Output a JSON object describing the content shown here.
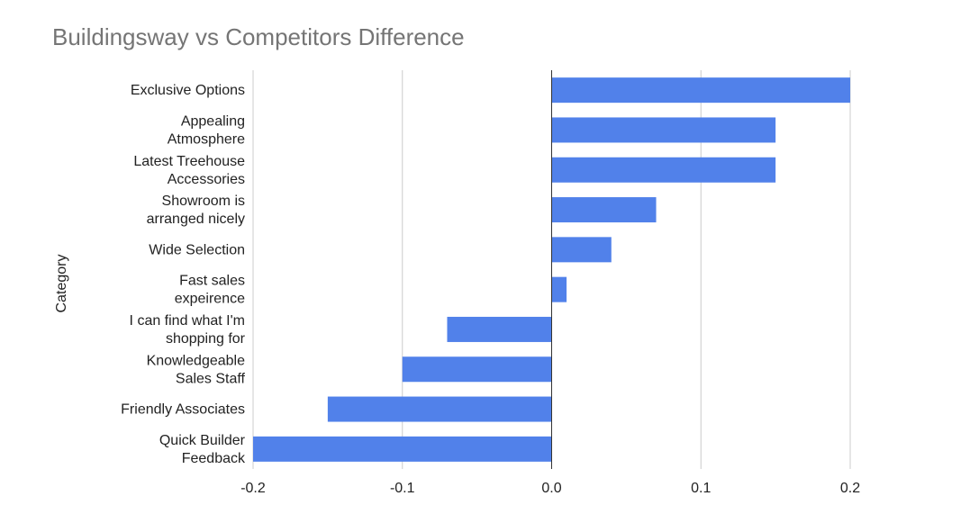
{
  "chart_data": {
    "type": "bar",
    "orientation": "horizontal",
    "title": "Buildingsway vs Competitors Difference",
    "ylabel": "Category",
    "xlabel": "",
    "xlim": [
      -0.2,
      0.2
    ],
    "x_ticks": [
      "-0.2",
      "-0.1",
      "0.0",
      "0.1",
      "0.2"
    ],
    "x_tick_values": [
      -0.2,
      -0.1,
      0,
      0.1,
      0.2
    ],
    "grid": true,
    "legend": "none",
    "bar_color": "#5181ea",
    "categories": [
      [
        "Exclusive Options"
      ],
      [
        "Appealing",
        "Atmosphere"
      ],
      [
        "Latest Treehouse",
        "Accessories"
      ],
      [
        "Showroom is",
        "arranged nicely"
      ],
      [
        "Wide Selection"
      ],
      [
        "Fast sales",
        "expeirence"
      ],
      [
        "I can find what I'm",
        "shopping for"
      ],
      [
        "Knowledgeable",
        "Sales Staff"
      ],
      [
        "Friendly Associates"
      ],
      [
        "Quick Builder",
        "Feedback"
      ]
    ],
    "values": [
      0.2,
      0.15,
      0.15,
      0.07,
      0.04,
      0.01,
      -0.07,
      -0.1,
      -0.15,
      -0.2
    ]
  }
}
